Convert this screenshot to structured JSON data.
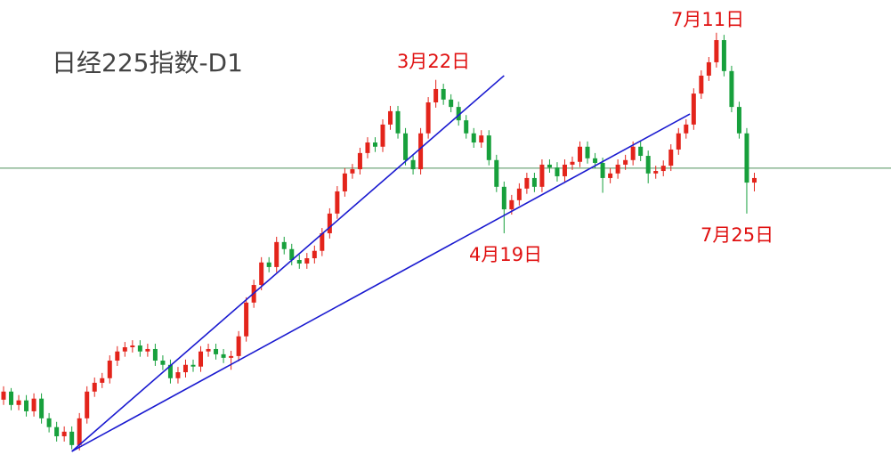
{
  "chart_data": {
    "type": "candlestick",
    "title": "日经225指数-D1",
    "annotations": [
      "3月22日",
      "7月11日",
      "4月19日",
      "7月25日"
    ],
    "ylim": [
      30200,
      43360
    ],
    "up_color": "#e3241b",
    "down_color": "#17a03c",
    "trend_color": "#1a1ad0",
    "hline_color": "#4e8f5a",
    "hline": 38580,
    "trendlines": [
      [
        [
          9,
          30530
        ],
        [
          66,
          41210
        ]
      ],
      [
        [
          9,
          30530
        ],
        [
          90.5,
          40120
        ]
      ]
    ],
    "open": [
      32000,
      32230,
      31850,
      31980,
      31670,
      32030,
      31470,
      31220,
      30960,
      31090,
      30710,
      31470,
      32230,
      32480,
      32610,
      33110,
      33370,
      33490,
      33540,
      33370,
      33440,
      33110,
      32990,
      32610,
      32780,
      32990,
      32940,
      33370,
      33440,
      33290,
      33190,
      33240,
      33800,
      34760,
      35260,
      35900,
      35770,
      36480,
      36280,
      35970,
      35870,
      36020,
      36230,
      36730,
      37290,
      37920,
      38430,
      38550,
      39010,
      39310,
      39190,
      39820,
      40200,
      39570,
      38810,
      38550,
      39570,
      40450,
      40830,
      40530,
      40320,
      39940,
      39570,
      39310,
      39510,
      38810,
      38050,
      37410,
      37670,
      38000,
      38300,
      38050,
      38680,
      38600,
      38350,
      38680,
      38760,
      39190,
      38860,
      38730,
      38300,
      38430,
      38680,
      38810,
      39190,
      38930,
      38430,
      38500,
      38650,
      39110,
      39570,
      39820,
      40700,
      41210,
      41590,
      42220,
      41340,
      40320,
      39570,
      38170
    ],
    "high": [
      32380,
      32330,
      32130,
      32130,
      32180,
      32180,
      31620,
      31370,
      31240,
      31240,
      31620,
      32380,
      32630,
      32760,
      33260,
      33520,
      33640,
      33690,
      33690,
      33590,
      33590,
      33260,
      33140,
      32930,
      33140,
      33140,
      33520,
      33590,
      33590,
      33440,
      33390,
      33950,
      34910,
      35410,
      36050,
      36050,
      36630,
      36630,
      36430,
      36120,
      36170,
      36380,
      36880,
      37440,
      38070,
      38580,
      38700,
      39160,
      39460,
      39460,
      39970,
      40350,
      40350,
      39720,
      38960,
      39720,
      40600,
      41090,
      40980,
      40680,
      40470,
      40090,
      39720,
      39660,
      39660,
      38960,
      38200,
      37820,
      38150,
      38450,
      38450,
      38830,
      38830,
      38750,
      38830,
      38910,
      39340,
      39340,
      39010,
      38880,
      38580,
      38830,
      38960,
      39340,
      39340,
      39080,
      38650,
      38800,
      39260,
      39720,
      39970,
      40850,
      41360,
      41740,
      42430,
      42370,
      41490,
      40470,
      39720,
      38450
    ],
    "low": [
      31850,
      31700,
      31700,
      31520,
      31520,
      31320,
      31070,
      30810,
      30810,
      30590,
      30560,
      31320,
      32080,
      32330,
      32460,
      32960,
      33220,
      33340,
      33220,
      33220,
      32960,
      32840,
      32460,
      32460,
      32630,
      32790,
      32790,
      33220,
      33140,
      33040,
      32850,
      33090,
      33650,
      34610,
      35110,
      35620,
      35620,
      36130,
      35820,
      35720,
      35720,
      35870,
      36080,
      36580,
      37140,
      37770,
      38280,
      38400,
      38860,
      39040,
      39040,
      39670,
      39420,
      38660,
      38400,
      38400,
      39420,
      40300,
      40380,
      40170,
      39790,
      39420,
      39160,
      39160,
      38660,
      37900,
      36730,
      37260,
      37520,
      37850,
      37900,
      37900,
      38450,
      38200,
      38200,
      38530,
      38610,
      38710,
      38580,
      37880,
      38150,
      38280,
      38530,
      38660,
      38780,
      38150,
      38280,
      38350,
      38500,
      38960,
      39420,
      39670,
      40550,
      41060,
      41440,
      41190,
      40170,
      39420,
      37290,
      37920
    ],
    "close": [
      32230,
      31850,
      31980,
      31670,
      32030,
      31470,
      31220,
      30960,
      31090,
      30710,
      31470,
      32230,
      32480,
      32610,
      33110,
      33370,
      33490,
      33540,
      33370,
      33440,
      33110,
      32990,
      32610,
      32780,
      32990,
      32940,
      33370,
      33440,
      33290,
      33190,
      33240,
      33800,
      34760,
      35260,
      35900,
      35770,
      36480,
      36280,
      35970,
      35870,
      36020,
      36230,
      36730,
      37290,
      37920,
      38430,
      38550,
      39010,
      39310,
      39190,
      39820,
      40200,
      39570,
      38810,
      38550,
      39570,
      40450,
      40830,
      40530,
      40320,
      39940,
      39570,
      39310,
      39510,
      38810,
      38050,
      37410,
      37670,
      38000,
      38300,
      38050,
      38680,
      38600,
      38350,
      38680,
      38760,
      39190,
      38860,
      38730,
      38300,
      38430,
      38680,
      38810,
      39190,
      38930,
      38430,
      38500,
      38650,
      39110,
      39570,
      39820,
      40700,
      41210,
      41590,
      42220,
      41340,
      40320,
      39570,
      38170,
      38300
    ]
  }
}
